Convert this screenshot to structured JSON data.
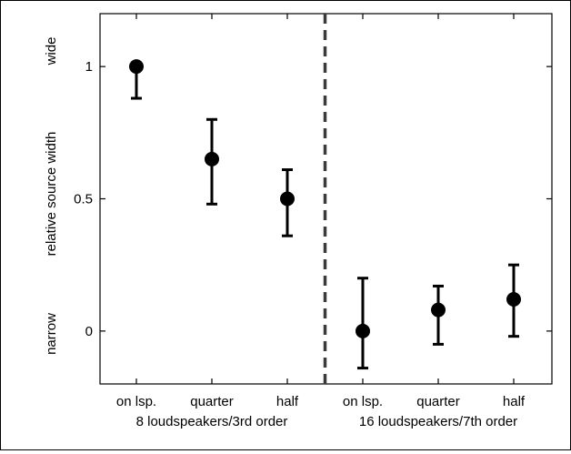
{
  "chart_data": {
    "type": "scatter",
    "ylabel": "relative source width",
    "ylabel_low": "narrow",
    "ylabel_high": "wide",
    "ylim": [
      -0.2,
      1.2
    ],
    "yticks": [
      0,
      0.5,
      1
    ],
    "ytick_labels": [
      "0",
      "0.5",
      "1"
    ],
    "grid": false,
    "x_labels": [
      "on lsp.",
      "quarter",
      "half",
      "on lsp.",
      "quarter",
      "half"
    ],
    "groups": [
      {
        "label": "8 loudspeakers/3rd order"
      },
      {
        "label": "16 loudspeakers/7th order"
      }
    ],
    "divider": {
      "style": "dashed",
      "between_index": 2.5
    },
    "points": [
      {
        "y": 1.0,
        "err_low": 0.88,
        "err_high": 1.0
      },
      {
        "y": 0.65,
        "err_low": 0.48,
        "err_high": 0.8
      },
      {
        "y": 0.5,
        "err_low": 0.36,
        "err_high": 0.61
      },
      {
        "y": 0.0,
        "err_low": -0.14,
        "err_high": 0.2
      },
      {
        "y": 0.08,
        "err_low": -0.05,
        "err_high": 0.17
      },
      {
        "y": 0.12,
        "err_low": -0.02,
        "err_high": 0.25
      }
    ],
    "marker_color": "#000000",
    "divider_color": "#3a3a3a"
  }
}
